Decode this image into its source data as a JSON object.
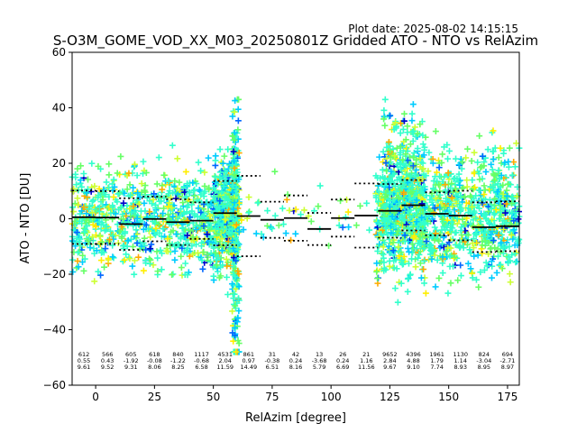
{
  "header": {
    "plot_date": "Plot date: 2025-08-02 14:15:15",
    "title": "S-O3M_GOME_VOD_XX_M03_20250801Z Gridded ATO - NTO vs RelAzim"
  },
  "chart_data": {
    "type": "scatter",
    "title": "S-O3M_GOME_VOD_XX_M03_20250801Z Gridded ATO - NTO vs RelAzim",
    "xlabel": "RelAzim [degree]",
    "ylabel": "ATO - NTO [DU]",
    "xlim": [
      -10,
      180
    ],
    "ylim": [
      -60,
      60
    ],
    "xticks": [
      0,
      25,
      50,
      75,
      100,
      125,
      150,
      175
    ],
    "yticks": [
      -60,
      -40,
      -20,
      0,
      20,
      40,
      60
    ],
    "grid": false,
    "legend": "none",
    "marker": "+",
    "colormap": [
      "#0000cc",
      "#0066ff",
      "#00ccff",
      "#33ffcc",
      "#66ff66",
      "#ccff33",
      "#ffee00",
      "#ffaa00",
      "#ff6600"
    ],
    "colors": {
      "mean_line": "#000000",
      "std_line": "#000000",
      "axes": "#000000"
    },
    "scatter_clusters": [
      {
        "x": [
          -10,
          60
        ],
        "y_center": 0,
        "y_spread": 18
      },
      {
        "x": [
          50,
          60
        ],
        "y_center": 3,
        "y_spread": 20
      },
      {
        "x": [
          58,
          61
        ],
        "y_center": -5,
        "y_spread": 45
      },
      {
        "x": [
          61,
          118
        ],
        "y_center": 0,
        "y_spread": 12
      },
      {
        "x": [
          119,
          180
        ],
        "y_center": 2,
        "y_spread": 22
      },
      {
        "x": [
          122,
          140
        ],
        "y_center": 10,
        "y_spread": 28
      }
    ],
    "bins": [
      {
        "x": [
          -10,
          0
        ],
        "count": "612",
        "mean": "0.55",
        "std": "9.61"
      },
      {
        "x": [
          0,
          10
        ],
        "count": "566",
        "mean": "0.43",
        "std": "9.52"
      },
      {
        "x": [
          10,
          20
        ],
        "count": "605",
        "mean": "-1.92",
        "std": "9.31"
      },
      {
        "x": [
          20,
          30
        ],
        "count": "618",
        "mean": "-0.08",
        "std": "8.06"
      },
      {
        "x": [
          30,
          40
        ],
        "count": "840",
        "mean": "-1.22",
        "std": "8.25"
      },
      {
        "x": [
          40,
          50
        ],
        "count": "1117",
        "mean": "-0.68",
        "std": "6.58"
      },
      {
        "x": [
          50,
          60
        ],
        "count": "4531",
        "mean": "2.04",
        "std": "11.59"
      },
      {
        "x": [
          60,
          70
        ],
        "count": "861",
        "mean": "0.97",
        "std": "14.49"
      },
      {
        "x": [
          70,
          80
        ],
        "count": "31",
        "mean": "-0.38",
        "std": "6.51"
      },
      {
        "x": [
          80,
          90
        ],
        "count": "42",
        "mean": "0.24",
        "std": "8.16"
      },
      {
        "x": [
          90,
          100
        ],
        "count": "13",
        "mean": "-3.68",
        "std": "5.79"
      },
      {
        "x": [
          100,
          110
        ],
        "count": "26",
        "mean": "0.24",
        "std": "6.69"
      },
      {
        "x": [
          110,
          120
        ],
        "count": "21",
        "mean": "1.16",
        "std": "11.56"
      },
      {
        "x": [
          120,
          130
        ],
        "count": "9652",
        "mean": "2.84",
        "std": "9.67"
      },
      {
        "x": [
          130,
          140
        ],
        "count": "4396",
        "mean": "4.88",
        "std": "9.10"
      },
      {
        "x": [
          140,
          150
        ],
        "count": "1961",
        "mean": "1.79",
        "std": "7.74"
      },
      {
        "x": [
          150,
          160
        ],
        "count": "1130",
        "mean": "1.14",
        "std": "8.93"
      },
      {
        "x": [
          160,
          170
        ],
        "count": "824",
        "mean": "-3.04",
        "std": "8.95"
      },
      {
        "x": [
          170,
          180
        ],
        "count": "694",
        "mean": "-2.71",
        "std": "8.97"
      }
    ]
  }
}
